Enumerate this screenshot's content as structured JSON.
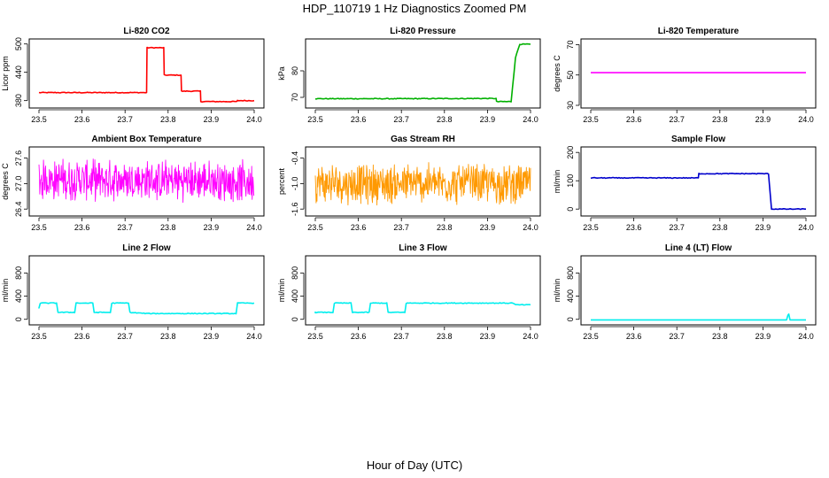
{
  "title": "HDP_110719  1 Hz Diagnostics Zoomed PM",
  "xlabel": "Hour of Day (UTC)",
  "chart_data": [
    {
      "type": "line",
      "title": "Li-820 CO2",
      "ylabel": "Licor ppm",
      "color": "#ff0000",
      "noise": "low",
      "xlim": [
        23.5,
        24.0
      ],
      "xticks": [
        "23.5",
        "23.6",
        "23.7",
        "23.8",
        "23.9",
        "24.0"
      ],
      "ylim": [
        370,
        505
      ],
      "yticks": [
        "380",
        "440",
        "500"
      ],
      "series": [
        {
          "x": [
            23.5,
            23.75,
            23.751,
            23.79,
            23.791,
            23.83,
            23.831,
            23.875,
            23.876,
            23.96,
            23.961,
            24.0
          ],
          "y": [
            397,
            397,
            492,
            492,
            434,
            434,
            400,
            400,
            378,
            378,
            380,
            380
          ]
        }
      ]
    },
    {
      "type": "line",
      "title": "Li-820 Pressure",
      "ylabel": "kPa",
      "color": "#00b000",
      "noise": "low",
      "xlim": [
        23.5,
        24.0
      ],
      "xticks": [
        "23.5",
        "23.6",
        "23.7",
        "23.8",
        "23.9",
        "24.0"
      ],
      "ylim": [
        67,
        91
      ],
      "yticks": [
        "70",
        "80"
      ],
      "series": [
        {
          "x": [
            23.5,
            23.7,
            23.92,
            23.921,
            23.955,
            23.965,
            23.975,
            23.976,
            24.0
          ],
          "y": [
            69.5,
            69.5,
            69.6,
            68.4,
            68.4,
            85,
            90,
            90,
            90
          ]
        }
      ]
    },
    {
      "type": "line",
      "title": "Li-820 Temperature",
      "ylabel": "degrees C",
      "color": "#ff00ff",
      "noise": "none",
      "xlim": [
        23.5,
        24.0
      ],
      "xticks": [
        "23.5",
        "23.6",
        "23.7",
        "23.8",
        "23.9",
        "24.0"
      ],
      "ylim": [
        30,
        72
      ],
      "yticks": [
        "30",
        "50",
        "70"
      ],
      "series": [
        {
          "x": [
            23.5,
            24.0
          ],
          "y": [
            51.5,
            51.5
          ]
        }
      ]
    },
    {
      "type": "line",
      "title": "Ambient Box Temperature",
      "ylabel": "degrees C",
      "color": "#ff00ff",
      "noise": "high",
      "xlim": [
        23.5,
        24.0
      ],
      "xticks": [
        "23.5",
        "23.6",
        "23.7",
        "23.8",
        "23.9",
        "24.0"
      ],
      "ylim": [
        26.3,
        27.8
      ],
      "yticks": [
        "26.4",
        "27.0",
        "27.6"
      ],
      "series": [
        {
          "x": [
            23.5,
            24.0
          ],
          "y": [
            27.1,
            27.05
          ]
        }
      ]
    },
    {
      "type": "line",
      "title": "Gas Stream RH",
      "ylabel": "percent",
      "color": "#ff9900",
      "noise": "high",
      "xlim": [
        23.5,
        24.0
      ],
      "xticks": [
        "23.5",
        "23.6",
        "23.7",
        "23.8",
        "23.9",
        "24.0"
      ],
      "ylim": [
        -1.7,
        -0.2
      ],
      "yticks": [
        "-1.6",
        "-1.0",
        "-0.4"
      ],
      "series": [
        {
          "x": [
            23.5,
            24.0
          ],
          "y": [
            -1.0,
            -1.0
          ]
        }
      ]
    },
    {
      "type": "line",
      "title": "Sample Flow",
      "ylabel": "ml/min",
      "color": "#0000cc",
      "noise": "low",
      "xlim": [
        23.5,
        24.0
      ],
      "xticks": [
        "23.5",
        "23.6",
        "23.7",
        "23.8",
        "23.9",
        "24.0"
      ],
      "ylim": [
        -15,
        210
      ],
      "yticks": [
        "0",
        "100",
        "200"
      ],
      "series": [
        {
          "x": [
            23.5,
            23.75,
            23.751,
            23.913,
            23.92,
            24.0
          ],
          "y": [
            110,
            110,
            125,
            125,
            0,
            0
          ]
        }
      ]
    },
    {
      "type": "line",
      "title": "Line 2 Flow",
      "ylabel": "ml/min",
      "color": "#00eeee",
      "noise": "low",
      "xlim": [
        23.5,
        24.0
      ],
      "xticks": [
        "23.5",
        "23.6",
        "23.7",
        "23.8",
        "23.9",
        "24.0"
      ],
      "ylim": [
        -50,
        1050
      ],
      "yticks": [
        "0",
        "400",
        "800"
      ],
      "series": [
        {
          "x": [
            23.5,
            23.5,
            23.541,
            23.541,
            23.583,
            23.583,
            23.625,
            23.625,
            23.666,
            23.666,
            23.708,
            23.708,
            23.75,
            23.958,
            23.958,
            24.0
          ],
          "y": [
            200,
            280,
            280,
            120,
            120,
            280,
            280,
            120,
            120,
            280,
            280,
            120,
            100,
            100,
            280,
            280
          ]
        }
      ]
    },
    {
      "type": "line",
      "title": "Line 3 Flow",
      "ylabel": "ml/min",
      "color": "#00eeee",
      "noise": "low",
      "xlim": [
        23.5,
        24.0
      ],
      "xticks": [
        "23.5",
        "23.6",
        "23.7",
        "23.8",
        "23.9",
        "24.0"
      ],
      "ylim": [
        -50,
        1050
      ],
      "yticks": [
        "0",
        "400",
        "800"
      ],
      "series": [
        {
          "x": [
            23.5,
            23.5,
            23.5,
            23.541,
            23.541,
            23.583,
            23.583,
            23.625,
            23.625,
            23.666,
            23.666,
            23.708,
            23.708,
            23.96,
            23.965,
            24.0
          ],
          "y": [
            120,
            260,
            120,
            120,
            280,
            280,
            120,
            120,
            280,
            280,
            120,
            120,
            280,
            280,
            250,
            250
          ]
        }
      ]
    },
    {
      "type": "line",
      "title": "Line 4 (LT) Flow",
      "ylabel": "ml/min",
      "color": "#00eeee",
      "noise": "none",
      "xlim": [
        23.5,
        24.0
      ],
      "xticks": [
        "23.5",
        "23.6",
        "23.7",
        "23.8",
        "23.9",
        "24.0"
      ],
      "ylim": [
        -50,
        1050
      ],
      "yticks": [
        "0",
        "400",
        "800"
      ],
      "series": [
        {
          "x": [
            23.5,
            23.955,
            23.958,
            23.96,
            23.963,
            24.0
          ],
          "y": [
            -10,
            -10,
            70,
            90,
            -10,
            -10
          ]
        }
      ]
    }
  ]
}
